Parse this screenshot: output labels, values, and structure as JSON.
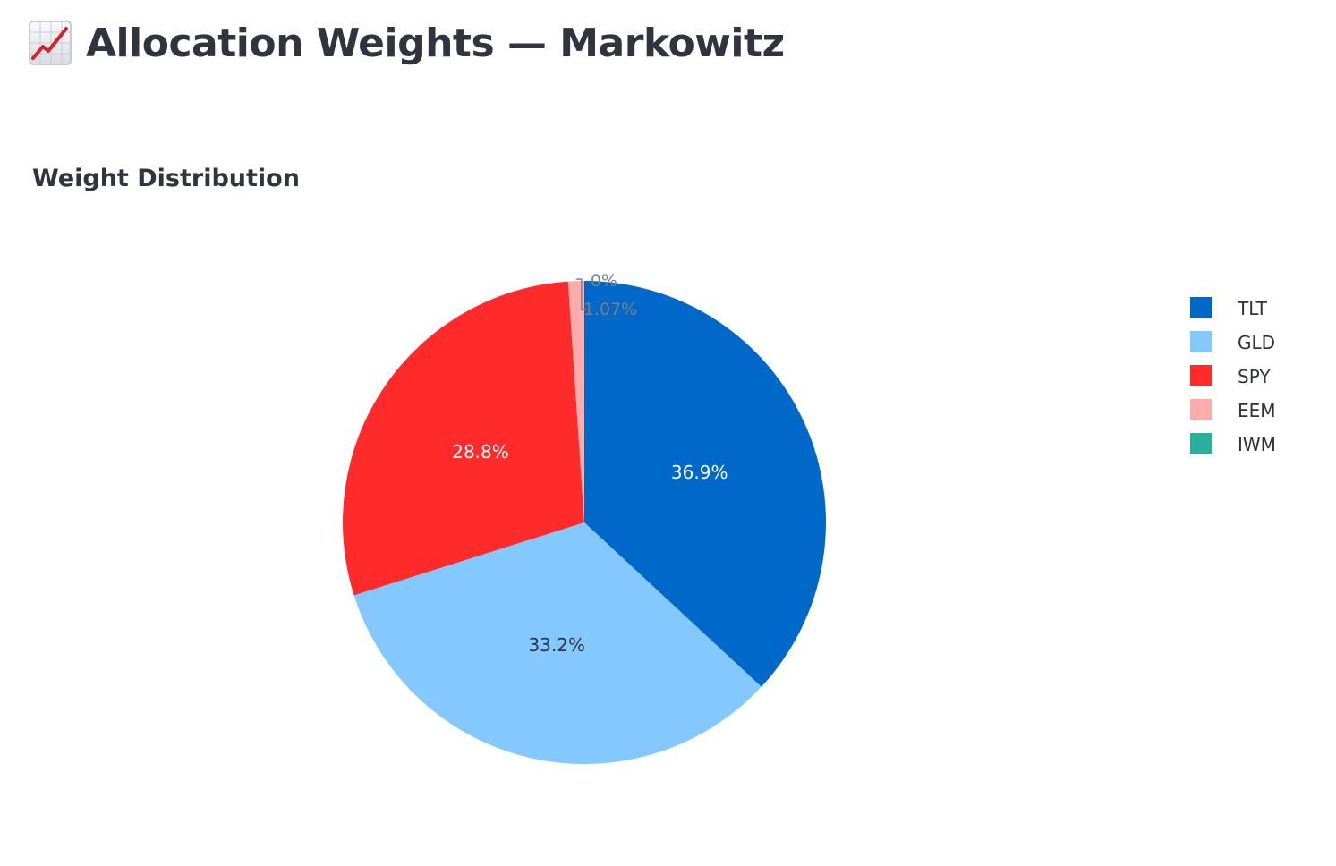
{
  "page": {
    "title": "Allocation Weights — Markowitz",
    "title_icon": "chart-increasing-icon",
    "section_heading": "Weight Distribution"
  },
  "chart_data": {
    "type": "pie",
    "title": "",
    "labels": [
      "TLT",
      "GLD",
      "SPY",
      "EEM",
      "IWM"
    ],
    "values": [
      36.9,
      33.2,
      28.8,
      1.07,
      0
    ],
    "value_labels": [
      "36.9%",
      "33.2%",
      "28.8%",
      "1.07%",
      "0%"
    ],
    "colors": [
      "#0068c9",
      "#83c9ff",
      "#ff2b2b",
      "#ffabab",
      "#29b09d"
    ],
    "label_colors": [
      "#ffffff",
      "#31333f",
      "#ffffff",
      "#7c7f8a",
      "#7c7f8a"
    ],
    "sort": "descending",
    "direction": "clockwise",
    "start_angle_deg": 0,
    "legend": {
      "position": "right",
      "items": [
        "TLT",
        "GLD",
        "SPY",
        "EEM",
        "IWM"
      ]
    }
  }
}
